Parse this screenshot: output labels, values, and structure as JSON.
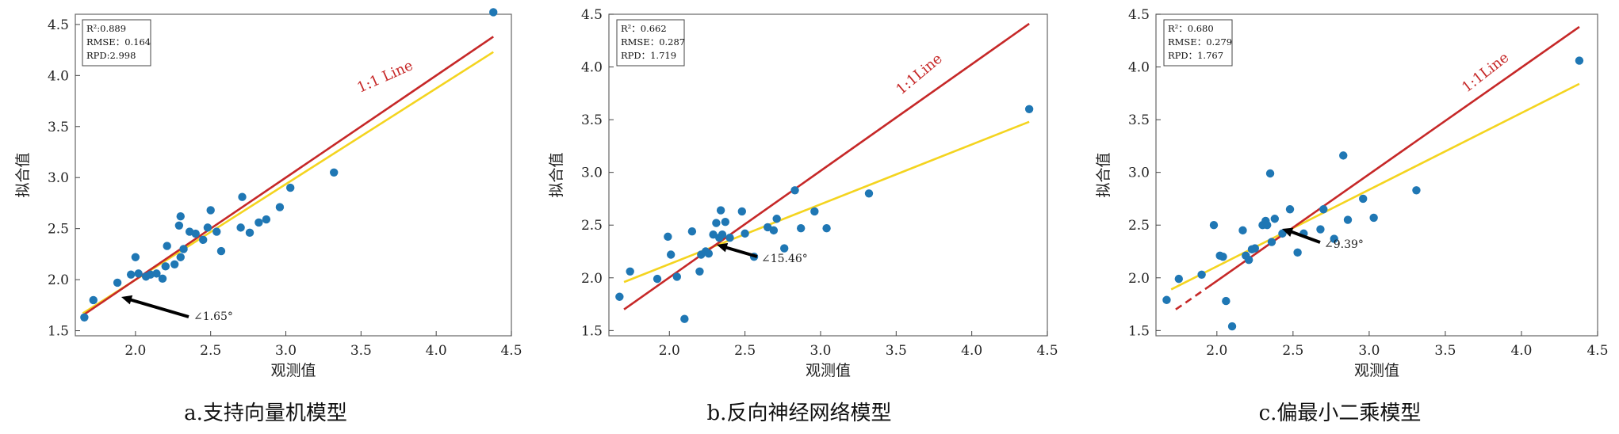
{
  "chart_data": [
    {
      "type": "scatter",
      "caption": "a.支持向量机模型",
      "xlabel": "观测值",
      "ylabel": "拟合值",
      "xlim": [
        1.6,
        4.5
      ],
      "ylim": [
        1.45,
        4.6
      ],
      "xticks": [
        "2.0",
        "2.5",
        "3.0",
        "3.5",
        "4.0",
        "4.5"
      ],
      "yticks": [
        "1.5",
        "2.0",
        "2.5",
        "3.0",
        "3.5",
        "4.0",
        "4.5"
      ],
      "stats": [
        "R²:0.889",
        "RMSE：0.164",
        "RPD:2.998"
      ],
      "angle_label": "∠1.65°",
      "ref_line_label": "1:1 Line",
      "ref_line": {
        "x": [
          1.65,
          4.38
        ],
        "y": [
          1.65,
          4.38
        ]
      },
      "fit_line": {
        "x": [
          1.65,
          4.38
        ],
        "y": [
          1.67,
          4.23
        ]
      },
      "points": [
        [
          1.66,
          1.63
        ],
        [
          1.72,
          1.8
        ],
        [
          1.88,
          1.97
        ],
        [
          1.97,
          2.05
        ],
        [
          2.0,
          2.22
        ],
        [
          2.02,
          2.06
        ],
        [
          2.07,
          2.03
        ],
        [
          2.1,
          2.05
        ],
        [
          2.14,
          2.06
        ],
        [
          2.18,
          2.01
        ],
        [
          2.2,
          2.13
        ],
        [
          2.21,
          2.33
        ],
        [
          2.26,
          2.15
        ],
        [
          2.3,
          2.22
        ],
        [
          2.29,
          2.53
        ],
        [
          2.3,
          2.62
        ],
        [
          2.32,
          2.3
        ],
        [
          2.36,
          2.47
        ],
        [
          2.4,
          2.45
        ],
        [
          2.45,
          2.39
        ],
        [
          2.48,
          2.51
        ],
        [
          2.5,
          2.68
        ],
        [
          2.54,
          2.47
        ],
        [
          2.57,
          2.28
        ],
        [
          2.7,
          2.51
        ],
        [
          2.71,
          2.81
        ],
        [
          2.76,
          2.46
        ],
        [
          2.82,
          2.56
        ],
        [
          2.87,
          2.59
        ],
        [
          2.96,
          2.71
        ],
        [
          3.03,
          2.9
        ],
        [
          3.32,
          3.05
        ],
        [
          4.38,
          4.62
        ]
      ]
    },
    {
      "type": "scatter",
      "caption": "b.反向神经网络模型",
      "xlabel": "观测值",
      "ylabel": "拟合值",
      "xlim": [
        1.6,
        4.5
      ],
      "ylim": [
        1.45,
        4.5
      ],
      "xticks": [
        "2.0",
        "2.5",
        "3.0",
        "3.5",
        "4.0",
        "4.5"
      ],
      "yticks": [
        "1.5",
        "2.0",
        "2.5",
        "3.0",
        "3.5",
        "4.0",
        "4.5"
      ],
      "stats": [
        "R²：0.662",
        "RMSE：0.287",
        "RPD：1.719"
      ],
      "angle_label": "∠15.46°",
      "ref_line_label": "1:1Line",
      "ref_line": {
        "x": [
          1.7,
          4.38
        ],
        "y": [
          1.7,
          4.41
        ]
      },
      "fit_line": {
        "x": [
          1.7,
          4.38
        ],
        "y": [
          1.96,
          3.48
        ]
      },
      "points": [
        [
          1.67,
          1.82
        ],
        [
          1.74,
          2.06
        ],
        [
          1.92,
          1.99
        ],
        [
          1.99,
          2.39
        ],
        [
          2.01,
          2.22
        ],
        [
          2.05,
          2.01
        ],
        [
          2.1,
          1.61
        ],
        [
          2.15,
          2.44
        ],
        [
          2.2,
          2.06
        ],
        [
          2.21,
          2.22
        ],
        [
          2.24,
          2.25
        ],
        [
          2.26,
          2.23
        ],
        [
          2.29,
          2.41
        ],
        [
          2.31,
          2.52
        ],
        [
          2.33,
          2.38
        ],
        [
          2.34,
          2.64
        ],
        [
          2.35,
          2.41
        ],
        [
          2.37,
          2.53
        ],
        [
          2.4,
          2.38
        ],
        [
          2.48,
          2.63
        ],
        [
          2.5,
          2.42
        ],
        [
          2.56,
          2.2
        ],
        [
          2.65,
          2.48
        ],
        [
          2.69,
          2.45
        ],
        [
          2.71,
          2.56
        ],
        [
          2.76,
          2.28
        ],
        [
          2.83,
          2.83
        ],
        [
          2.87,
          2.47
        ],
        [
          2.96,
          2.63
        ],
        [
          3.04,
          2.47
        ],
        [
          3.32,
          2.8
        ],
        [
          4.38,
          3.6
        ]
      ]
    },
    {
      "type": "scatter",
      "caption": "c.偏最小二乘模型",
      "xlabel": "观测值",
      "ylabel": "拟合值",
      "xlim": [
        1.6,
        4.5
      ],
      "ylim": [
        1.45,
        4.5
      ],
      "xticks": [
        "2.0",
        "2.5",
        "3.0",
        "3.5",
        "4.0",
        "4.5"
      ],
      "yticks": [
        "1.5",
        "2.0",
        "2.5",
        "3.0",
        "3.5",
        "4.0",
        "4.5"
      ],
      "stats": [
        "R²：0.680",
        "RMSE：0.279",
        "RPD：1.767"
      ],
      "angle_label": "∠9.39°",
      "ref_line_label": "1:1Line",
      "ref_line": {
        "x": [
          1.73,
          4.38
        ],
        "y": [
          1.7,
          4.38
        ]
      },
      "fit_line": {
        "x": [
          1.7,
          4.38
        ],
        "y": [
          1.89,
          3.84
        ]
      },
      "points": [
        [
          1.67,
          1.79
        ],
        [
          1.75,
          1.99
        ],
        [
          1.9,
          2.03
        ],
        [
          1.98,
          2.5
        ],
        [
          2.02,
          2.21
        ],
        [
          2.04,
          2.2
        ],
        [
          2.06,
          1.78
        ],
        [
          2.1,
          1.54
        ],
        [
          2.17,
          2.45
        ],
        [
          2.19,
          2.21
        ],
        [
          2.21,
          2.17
        ],
        [
          2.23,
          2.27
        ],
        [
          2.25,
          2.28
        ],
        [
          2.3,
          2.5
        ],
        [
          2.32,
          2.54
        ],
        [
          2.33,
          2.5
        ],
        [
          2.35,
          2.99
        ],
        [
          2.36,
          2.34
        ],
        [
          2.38,
          2.56
        ],
        [
          2.43,
          2.42
        ],
        [
          2.48,
          2.65
        ],
        [
          2.53,
          2.24
        ],
        [
          2.57,
          2.42
        ],
        [
          2.68,
          2.46
        ],
        [
          2.7,
          2.65
        ],
        [
          2.77,
          2.37
        ],
        [
          2.83,
          3.16
        ],
        [
          2.86,
          2.55
        ],
        [
          2.96,
          2.75
        ],
        [
          3.03,
          2.57
        ],
        [
          3.31,
          2.83
        ],
        [
          4.38,
          4.06
        ]
      ]
    }
  ],
  "colors": {
    "point": "#1f77b4",
    "ref_line": "#c62828",
    "fit_line": "#f4d41f",
    "arrow": "#000000"
  }
}
